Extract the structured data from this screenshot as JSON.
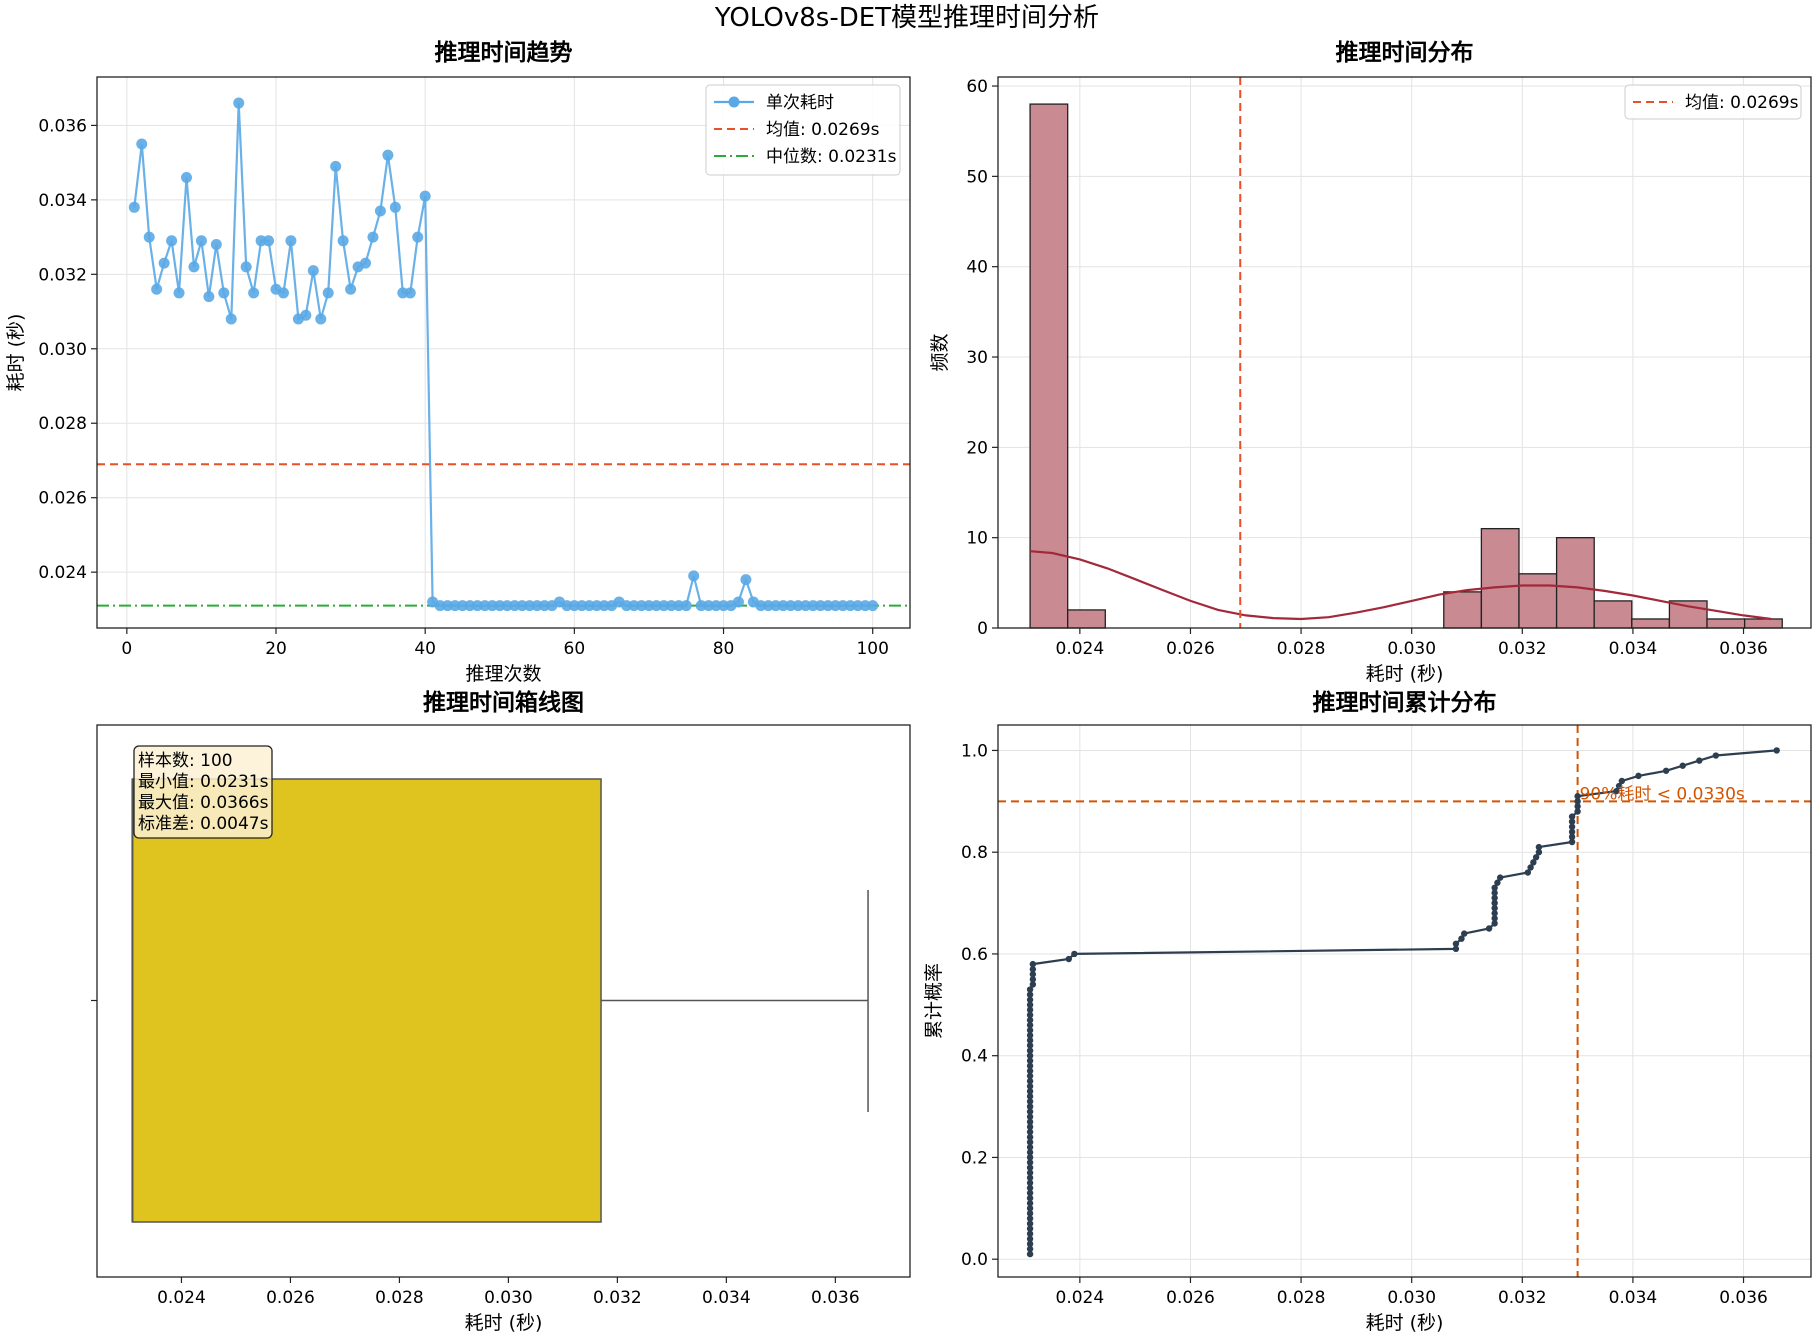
{
  "figure": {
    "title": "YOLOv8s-DET模型推理时间分析"
  },
  "colors": {
    "trend_line": "#5aa9e6",
    "mean": "#e8502a",
    "median": "#2eaa3a",
    "hist_bar": "#c98a92",
    "hist_edge": "#222222",
    "kde": "#a3283a",
    "box": "#dfc31f",
    "cdf": "#2c3e50",
    "p90": "#d35400"
  },
  "chart_data": [
    {
      "id": "trend",
      "type": "line",
      "title": "推理时间趋势",
      "xlabel": "推理次数",
      "ylabel": "耗时 (秒)",
      "xlim": [
        -4,
        105
      ],
      "ylim": [
        0.0225,
        0.0373
      ],
      "xticks": [
        0,
        20,
        40,
        60,
        80,
        100
      ],
      "yticks": [
        0.024,
        0.026,
        0.028,
        0.03,
        0.032,
        0.034,
        0.036
      ],
      "grid": true,
      "legend_position": "top-right",
      "series": [
        {
          "name": "单次耗时",
          "x": [
            1,
            2,
            3,
            4,
            5,
            6,
            7,
            8,
            9,
            10,
            11,
            12,
            13,
            14,
            15,
            16,
            17,
            18,
            19,
            20,
            21,
            22,
            23,
            24,
            25,
            26,
            27,
            28,
            29,
            30,
            31,
            32,
            33,
            34,
            35,
            36,
            37,
            38,
            39,
            40,
            41,
            42,
            43,
            44,
            45,
            46,
            47,
            48,
            49,
            50,
            51,
            52,
            53,
            54,
            55,
            56,
            57,
            58,
            59,
            60,
            61,
            62,
            63,
            64,
            65,
            66,
            67,
            68,
            69,
            70,
            71,
            72,
            73,
            74,
            75,
            76,
            77,
            78,
            79,
            80,
            81,
            82,
            83,
            84,
            85,
            86,
            87,
            88,
            89,
            90,
            91,
            92,
            93,
            94,
            95,
            96,
            97,
            98,
            99,
            100
          ],
          "values": [
            0.0338,
            0.0355,
            0.033,
            0.0316,
            0.0323,
            0.0329,
            0.0315,
            0.0346,
            0.0322,
            0.0329,
            0.0314,
            0.0328,
            0.0315,
            0.0308,
            0.0366,
            0.0322,
            0.0315,
            0.0329,
            0.0329,
            0.0316,
            0.0315,
            0.0329,
            0.0308,
            0.0309,
            0.0321,
            0.0308,
            0.0315,
            0.0349,
            0.0329,
            0.0316,
            0.0322,
            0.0323,
            0.033,
            0.0337,
            0.0352,
            0.0338,
            0.0315,
            0.0315,
            0.033,
            0.0341,
            0.0232,
            0.0231,
            0.0231,
            0.0231,
            0.0231,
            0.0231,
            0.0231,
            0.0231,
            0.0231,
            0.0231,
            0.0231,
            0.0231,
            0.0231,
            0.0231,
            0.0231,
            0.0231,
            0.0231,
            0.0232,
            0.0231,
            0.0231,
            0.0231,
            0.0231,
            0.0231,
            0.0231,
            0.0231,
            0.0232,
            0.0231,
            0.0231,
            0.0231,
            0.0231,
            0.0231,
            0.0231,
            0.0231,
            0.0231,
            0.0231,
            0.0239,
            0.0231,
            0.0231,
            0.0231,
            0.0231,
            0.0231,
            0.0232,
            0.0238,
            0.0232,
            0.0231,
            0.0231,
            0.0231,
            0.0231,
            0.0231,
            0.0231,
            0.0231,
            0.0231,
            0.0231,
            0.0231,
            0.0231,
            0.0231,
            0.0231,
            0.0231,
            0.0231,
            0.0231
          ]
        }
      ],
      "mean": {
        "label": "均值: 0.0269s",
        "value": 0.0269
      },
      "median": {
        "label": "中位数: 0.0231s",
        "value": 0.0231
      }
    },
    {
      "id": "hist",
      "type": "bar",
      "title": "推理时间分布",
      "xlabel": "耗时 (秒)",
      "ylabel": "频数",
      "xlim": [
        0.02252,
        0.03722
      ],
      "ylim": [
        0,
        61
      ],
      "xticks": [
        0.024,
        0.026,
        0.028,
        0.03,
        0.032,
        0.034,
        0.036
      ],
      "yticks": [
        0,
        10,
        20,
        30,
        40,
        50,
        60
      ],
      "grid": true,
      "legend_position": "top-right",
      "bin_edges": [
        0.0231,
        0.02378,
        0.02446,
        0.02514,
        0.02582,
        0.0265,
        0.02718,
        0.02786,
        0.02854,
        0.02922,
        0.0299,
        0.03058,
        0.03126,
        0.03194,
        0.03262,
        0.0333,
        0.03398,
        0.03466,
        0.03534,
        0.03602,
        0.0367
      ],
      "values": [
        58,
        2,
        0,
        0,
        0,
        0,
        0,
        0,
        0,
        0,
        0,
        4,
        11,
        6,
        10,
        3,
        1,
        3,
        1,
        1
      ],
      "kde_x": [
        0.0231,
        0.0235,
        0.024,
        0.0245,
        0.025,
        0.0255,
        0.026,
        0.0265,
        0.027,
        0.0275,
        0.028,
        0.0285,
        0.029,
        0.0295,
        0.03,
        0.0305,
        0.031,
        0.0315,
        0.032,
        0.0325,
        0.033,
        0.0335,
        0.034,
        0.0345,
        0.035,
        0.0355,
        0.036,
        0.0365
      ],
      "kde_y": [
        8.5,
        8.3,
        7.6,
        6.6,
        5.4,
        4.2,
        3.0,
        2.0,
        1.4,
        1.1,
        1.0,
        1.2,
        1.7,
        2.3,
        3.0,
        3.7,
        4.2,
        4.5,
        4.7,
        4.7,
        4.5,
        4.1,
        3.6,
        3.0,
        2.4,
        1.9,
        1.4,
        1.0
      ],
      "mean": {
        "label": "均值: 0.0269s",
        "value": 0.0269
      }
    },
    {
      "id": "box",
      "type": "box",
      "title": "推理时间箱线图",
      "xlabel": "耗时 (秒)",
      "xlim": [
        0.02245,
        0.03737
      ],
      "xticks": [
        0.024,
        0.026,
        0.028,
        0.03,
        0.032,
        0.034,
        0.036
      ],
      "grid": false,
      "q1": 0.0231,
      "median": 0.0231,
      "q3": 0.0317,
      "whisker_low": 0.0231,
      "whisker_high": 0.0366,
      "stats_lines": [
        "样本数: 100",
        "最小值: 0.0231s",
        "最大值: 0.0366s",
        "标准差: 0.0047s"
      ]
    },
    {
      "id": "cdf",
      "type": "line",
      "title": "推理时间累计分布",
      "xlabel": "耗时 (秒)",
      "ylabel": "累计概率",
      "xlim": [
        0.02252,
        0.03722
      ],
      "ylim": [
        -0.035,
        1.05
      ],
      "xticks": [
        0.024,
        0.026,
        0.028,
        0.03,
        0.032,
        0.034,
        0.036
      ],
      "yticks": [
        0.0,
        0.2,
        0.4,
        0.6,
        0.8,
        1.0
      ],
      "grid": true,
      "p90": {
        "label": "90%耗时 < 0.0330s",
        "x": 0.033,
        "y": 0.9
      },
      "points": [
        [
          0.0231,
          0.01
        ],
        [
          0.0231,
          0.53
        ],
        [
          0.02315,
          0.54
        ],
        [
          0.02315,
          0.58
        ],
        [
          0.0238,
          0.59
        ],
        [
          0.0239,
          0.6
        ],
        [
          0.0308,
          0.61
        ],
        [
          0.0308,
          0.62
        ],
        [
          0.0309,
          0.63
        ],
        [
          0.03095,
          0.64
        ],
        [
          0.0314,
          0.65
        ],
        [
          0.0315,
          0.66
        ],
        [
          0.0315,
          0.73
        ],
        [
          0.0316,
          0.75
        ],
        [
          0.0321,
          0.76
        ],
        [
          0.0322,
          0.78
        ],
        [
          0.0323,
          0.8
        ],
        [
          0.0323,
          0.81
        ],
        [
          0.0329,
          0.82
        ],
        [
          0.0329,
          0.87
        ],
        [
          0.033,
          0.88
        ],
        [
          0.033,
          0.89
        ],
        [
          0.033,
          0.91
        ],
        [
          0.0337,
          0.92
        ],
        [
          0.0338,
          0.94
        ],
        [
          0.0341,
          0.95
        ],
        [
          0.0346,
          0.96
        ],
        [
          0.0349,
          0.97
        ],
        [
          0.0352,
          0.98
        ],
        [
          0.0355,
          0.99
        ],
        [
          0.0366,
          1.0
        ]
      ]
    }
  ]
}
